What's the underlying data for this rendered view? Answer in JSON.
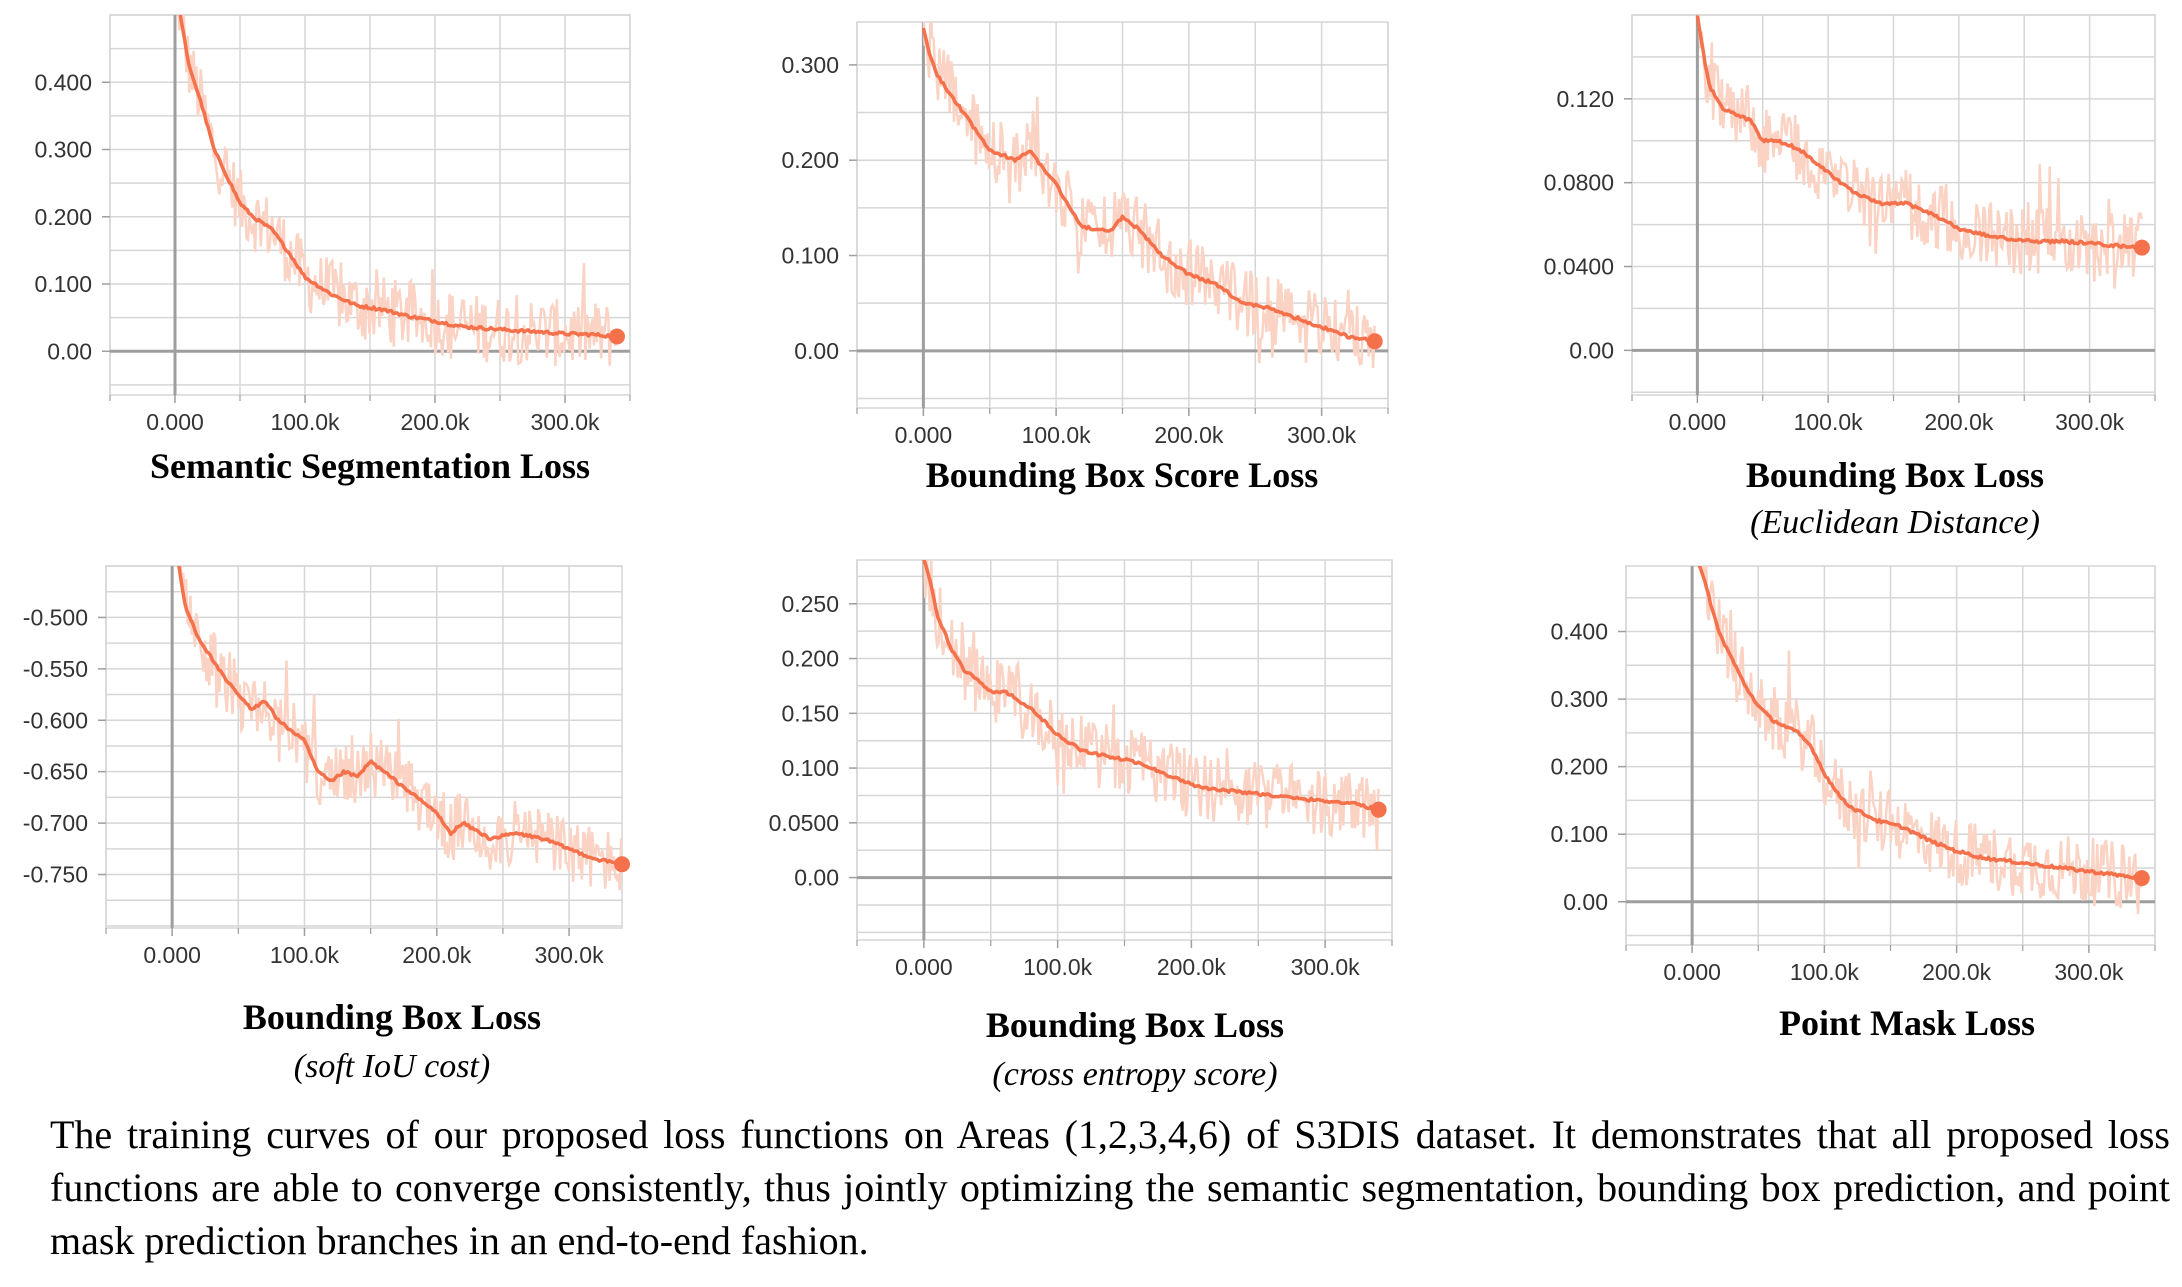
{
  "caption": "The training curves of our proposed loss functions on Areas (1,2,3,4,6) of S3DIS dataset. It demonstrates that all proposed loss functions are able to converge consistently, thus jointly optimizing the semantic segmentation, bounding box prediction, and point mask prediction branches in an end-to-end fashion.",
  "colors": {
    "smoothed": "#f4714b",
    "raw": "#fbd3c4",
    "grid": "#d6d6d6",
    "axis": "#9e9e9e"
  },
  "chart_data": [
    {
      "type": "line",
      "title": "Semantic Segmentation Loss",
      "subtitle": "",
      "xlabel": "",
      "ylabel": "",
      "xlim": [
        -50000,
        350000
      ],
      "ylim": [
        -0.065,
        0.5
      ],
      "x_ticks": [
        0,
        100000,
        200000,
        300000
      ],
      "x_tick_labels": [
        "0.000",
        "100.0k",
        "200.0k",
        "300.0k"
      ],
      "y_ticks": [
        0,
        0.1,
        0.2,
        0.3,
        0.4
      ],
      "y_tick_labels": [
        "0.00",
        "0.100",
        "0.200",
        "0.300",
        "0.400"
      ],
      "grid": true,
      "series": [
        {
          "x": [
            0,
            10000,
            20000,
            30000,
            40000,
            50000,
            60000,
            75000,
            90000,
            100000,
            120000,
            140000,
            160000,
            180000,
            200000,
            220000,
            240000,
            260000,
            280000,
            300000,
            320000,
            340000
          ],
          "y": [
            0.55,
            0.43,
            0.37,
            0.3,
            0.26,
            0.22,
            0.2,
            0.18,
            0.14,
            0.11,
            0.085,
            0.068,
            0.062,
            0.052,
            0.045,
            0.037,
            0.034,
            0.031,
            0.029,
            0.026,
            0.025,
            0.022
          ]
        }
      ],
      "final_value": 0.022
    },
    {
      "type": "line",
      "title": "Bounding Box Score Loss",
      "subtitle": "",
      "xlabel": "",
      "ylabel": "",
      "xlim": [
        -50000,
        350000
      ],
      "ylim": [
        -0.06,
        0.345
      ],
      "x_ticks": [
        0,
        100000,
        200000,
        300000
      ],
      "x_tick_labels": [
        "0.000",
        "100.0k",
        "200.0k",
        "300.0k"
      ],
      "y_ticks": [
        0,
        0.1,
        0.2,
        0.3
      ],
      "y_tick_labels": [
        "0.00",
        "0.100",
        "0.200",
        "0.300"
      ],
      "grid": true,
      "series": [
        {
          "x": [
            0,
            5000,
            10000,
            20000,
            40000,
            50000,
            70000,
            80000,
            100000,
            110000,
            120000,
            140000,
            150000,
            160000,
            180000,
            200000,
            220000,
            240000,
            260000,
            280000,
            300000,
            320000,
            340000
          ],
          "y": [
            0.34,
            0.31,
            0.29,
            0.27,
            0.23,
            0.21,
            0.2,
            0.21,
            0.175,
            0.15,
            0.13,
            0.125,
            0.14,
            0.13,
            0.1,
            0.08,
            0.07,
            0.05,
            0.045,
            0.035,
            0.025,
            0.015,
            0.01
          ]
        }
      ],
      "final_value": 0.01
    },
    {
      "type": "line",
      "title": "Bounding Box Loss",
      "subtitle": "(Euclidean Distance)",
      "xlabel": "",
      "ylabel": "",
      "xlim": [
        -50000,
        350000
      ],
      "ylim": [
        -0.0213,
        0.16
      ],
      "x_ticks": [
        0,
        100000,
        200000,
        300000
      ],
      "x_tick_labels": [
        "0.000",
        "100.0k",
        "200.0k",
        "300.0k"
      ],
      "y_ticks": [
        0,
        0.04,
        0.08,
        0.12
      ],
      "y_tick_labels": [
        "0.00",
        "0.0400",
        "0.0800",
        "0.120"
      ],
      "grid": true,
      "series": [
        {
          "x": [
            0,
            5000,
            10000,
            20000,
            40000,
            50000,
            60000,
            70000,
            80000,
            100000,
            120000,
            140000,
            160000,
            180000,
            200000,
            220000,
            240000,
            260000,
            280000,
            300000,
            320000,
            340000
          ],
          "y": [
            0.16,
            0.14,
            0.125,
            0.115,
            0.11,
            0.1,
            0.1,
            0.098,
            0.095,
            0.085,
            0.075,
            0.07,
            0.07,
            0.065,
            0.058,
            0.055,
            0.053,
            0.052,
            0.052,
            0.051,
            0.05,
            0.049
          ]
        }
      ],
      "final_value": 0.049
    },
    {
      "type": "line",
      "title": "Bounding Box Loss",
      "subtitle": "(soft IoU cost)",
      "xlabel": "",
      "ylabel": "",
      "xlim": [
        -50000,
        340000
      ],
      "ylim": [
        -0.802,
        -0.45
      ],
      "x_ticks": [
        0,
        100000,
        200000,
        300000
      ],
      "x_tick_labels": [
        "0.000",
        "100.0k",
        "200.0k",
        "300.0k"
      ],
      "y_ticks": [
        -0.75,
        -0.7,
        -0.65,
        -0.6,
        -0.55,
        -0.5
      ],
      "y_tick_labels": [
        "-0.750",
        "-0.700",
        "-0.650",
        "-0.600",
        "-0.550",
        "-0.500"
      ],
      "grid": true,
      "series": [
        {
          "x": [
            5000,
            10000,
            20000,
            40000,
            60000,
            70000,
            80000,
            100000,
            110000,
            120000,
            130000,
            140000,
            150000,
            160000,
            180000,
            200000,
            210000,
            220000,
            240000,
            260000,
            280000,
            300000,
            320000,
            340000
          ],
          "y": [
            -0.45,
            -0.49,
            -0.52,
            -0.56,
            -0.59,
            -0.58,
            -0.6,
            -0.62,
            -0.65,
            -0.66,
            -0.65,
            -0.655,
            -0.64,
            -0.65,
            -0.67,
            -0.69,
            -0.71,
            -0.7,
            -0.715,
            -0.71,
            -0.715,
            -0.725,
            -0.735,
            -0.74
          ]
        }
      ],
      "final_value": -0.74
    },
    {
      "type": "line",
      "title": "Bounding Box Loss",
      "subtitle": "(cross entropy score)",
      "xlabel": "",
      "ylabel": "",
      "xlim": [
        -50000,
        350000
      ],
      "ylim": [
        -0.057,
        0.29
      ],
      "x_ticks": [
        0,
        100000,
        200000,
        300000
      ],
      "x_tick_labels": [
        "0.000",
        "100.0k",
        "200.0k",
        "300.0k"
      ],
      "y_ticks": [
        0,
        0.05,
        0.1,
        0.15,
        0.2,
        0.25
      ],
      "y_tick_labels": [
        "0.00",
        "0.0500",
        "0.100",
        "0.150",
        "0.200",
        "0.250"
      ],
      "grid": true,
      "series": [
        {
          "x": [
            0,
            5000,
            10000,
            20000,
            30000,
            40000,
            50000,
            60000,
            80000,
            100000,
            120000,
            140000,
            160000,
            180000,
            200000,
            220000,
            240000,
            260000,
            280000,
            300000,
            320000,
            340000
          ],
          "y": [
            0.29,
            0.27,
            0.24,
            0.21,
            0.19,
            0.18,
            0.17,
            0.17,
            0.155,
            0.13,
            0.115,
            0.11,
            0.105,
            0.095,
            0.085,
            0.08,
            0.078,
            0.075,
            0.072,
            0.07,
            0.068,
            0.062
          ]
        }
      ],
      "final_value": 0.062
    },
    {
      "type": "line",
      "title": "Point Mask Loss",
      "subtitle": "",
      "xlabel": "",
      "ylabel": "",
      "xlim": [
        -50000,
        350000
      ],
      "ylim": [
        -0.064,
        0.497
      ],
      "x_ticks": [
        0,
        100000,
        200000,
        300000
      ],
      "x_tick_labels": [
        "0.000",
        "100.0k",
        "200.0k",
        "300.0k"
      ],
      "y_ticks": [
        0,
        0.1,
        0.2,
        0.3,
        0.4
      ],
      "y_tick_labels": [
        "0.00",
        "0.100",
        "0.200",
        "0.300",
        "0.400"
      ],
      "grid": true,
      "series": [
        {
          "x": [
            5000,
            10000,
            20000,
            30000,
            40000,
            50000,
            60000,
            70000,
            80000,
            90000,
            100000,
            110000,
            120000,
            140000,
            160000,
            180000,
            200000,
            220000,
            240000,
            260000,
            280000,
            300000,
            320000,
            340000
          ],
          "y": [
            0.5,
            0.47,
            0.4,
            0.36,
            0.32,
            0.29,
            0.27,
            0.26,
            0.25,
            0.23,
            0.19,
            0.16,
            0.14,
            0.12,
            0.11,
            0.09,
            0.075,
            0.065,
            0.06,
            0.055,
            0.05,
            0.045,
            0.04,
            0.035
          ]
        }
      ],
      "final_value": 0.035
    }
  ]
}
